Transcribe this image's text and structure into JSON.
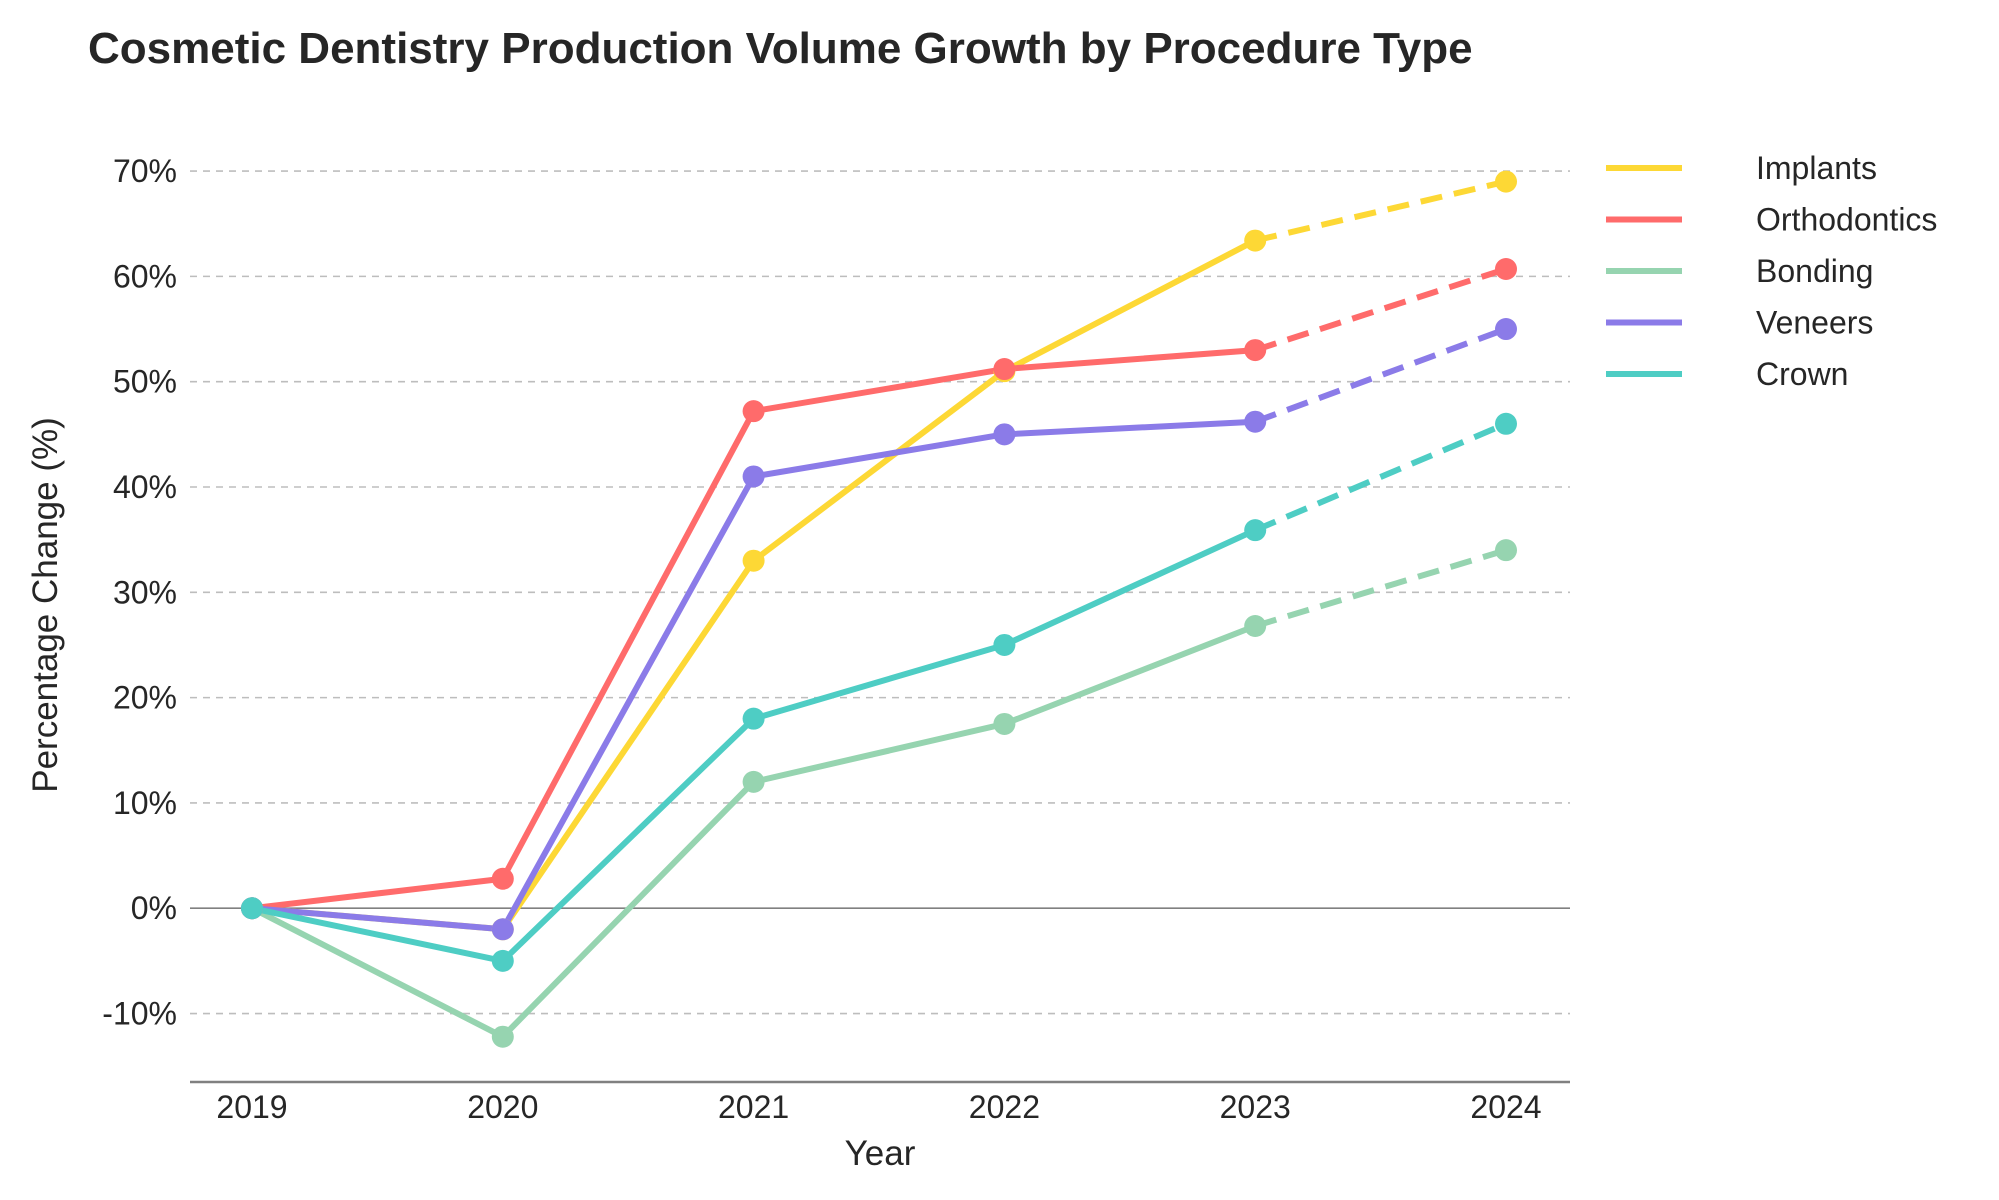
{
  "chart_data": {
    "type": "line",
    "title": "Cosmetic Dentistry Production Volume Growth by Procedure Type",
    "xlabel": "Year",
    "ylabel": "Percentage Change (%)",
    "x": [
      2019,
      2020,
      2021,
      2022,
      2023,
      2024
    ],
    "x_tick_labels": [
      "2019",
      "2020",
      "2021",
      "2022",
      "2023",
      "2024"
    ],
    "ylim": [
      -16.5,
      72
    ],
    "y_ticks": [
      -10,
      0,
      10,
      20,
      30,
      40,
      50,
      60,
      70
    ],
    "y_tick_labels": [
      "-10%",
      "0%",
      "10%",
      "20%",
      "30%",
      "40%",
      "50%",
      "60%",
      "70%"
    ],
    "grid": "horizontal dashed",
    "legend_position": "upper right, outside plot",
    "line_style": "solid through 2023, dashed from 2023 to 2024",
    "series": [
      {
        "name": "Implants",
        "color": "#FDD835",
        "values": [
          0,
          -2,
          33,
          51,
          63.4,
          69
        ]
      },
      {
        "name": "Orthodontics",
        "color": "#FF6B6B",
        "values": [
          0,
          2.8,
          47.2,
          51.2,
          53,
          60.7
        ]
      },
      {
        "name": "Bonding",
        "color": "#96D4B0",
        "values": [
          0,
          -12.2,
          12,
          17.5,
          26.8,
          34
        ]
      },
      {
        "name": "Veneers",
        "color": "#8B7BE8",
        "values": [
          0,
          -2,
          41,
          45,
          46.2,
          55
        ]
      },
      {
        "name": "Crown",
        "color": "#4ECDC4",
        "values": [
          0,
          -5,
          18,
          25,
          35.9,
          46
        ]
      }
    ]
  }
}
